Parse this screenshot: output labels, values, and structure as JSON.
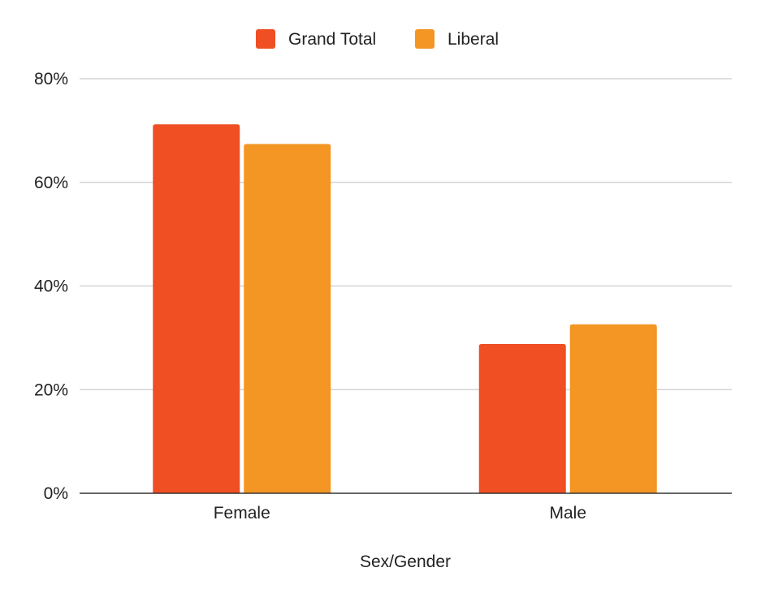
{
  "chart_data": {
    "type": "bar",
    "title": "",
    "xlabel": "Sex/Gender",
    "ylabel": "",
    "categories": [
      "Female",
      "Male"
    ],
    "series": [
      {
        "name": "Grand Total",
        "values": [
          71.2,
          28.8
        ],
        "color": "#f04e23"
      },
      {
        "name": "Liberal",
        "values": [
          67.4,
          32.6
        ],
        "color": "#f39624"
      }
    ],
    "ylim": [
      0,
      80
    ],
    "yticks": [
      {
        "value": 0,
        "label": "0%"
      },
      {
        "value": 20,
        "label": "20%"
      },
      {
        "value": 40,
        "label": "40%"
      },
      {
        "value": 60,
        "label": "60%"
      },
      {
        "value": 80,
        "label": "80%"
      }
    ],
    "value_format": "percent",
    "grid": true,
    "legend_position": "top-center"
  }
}
